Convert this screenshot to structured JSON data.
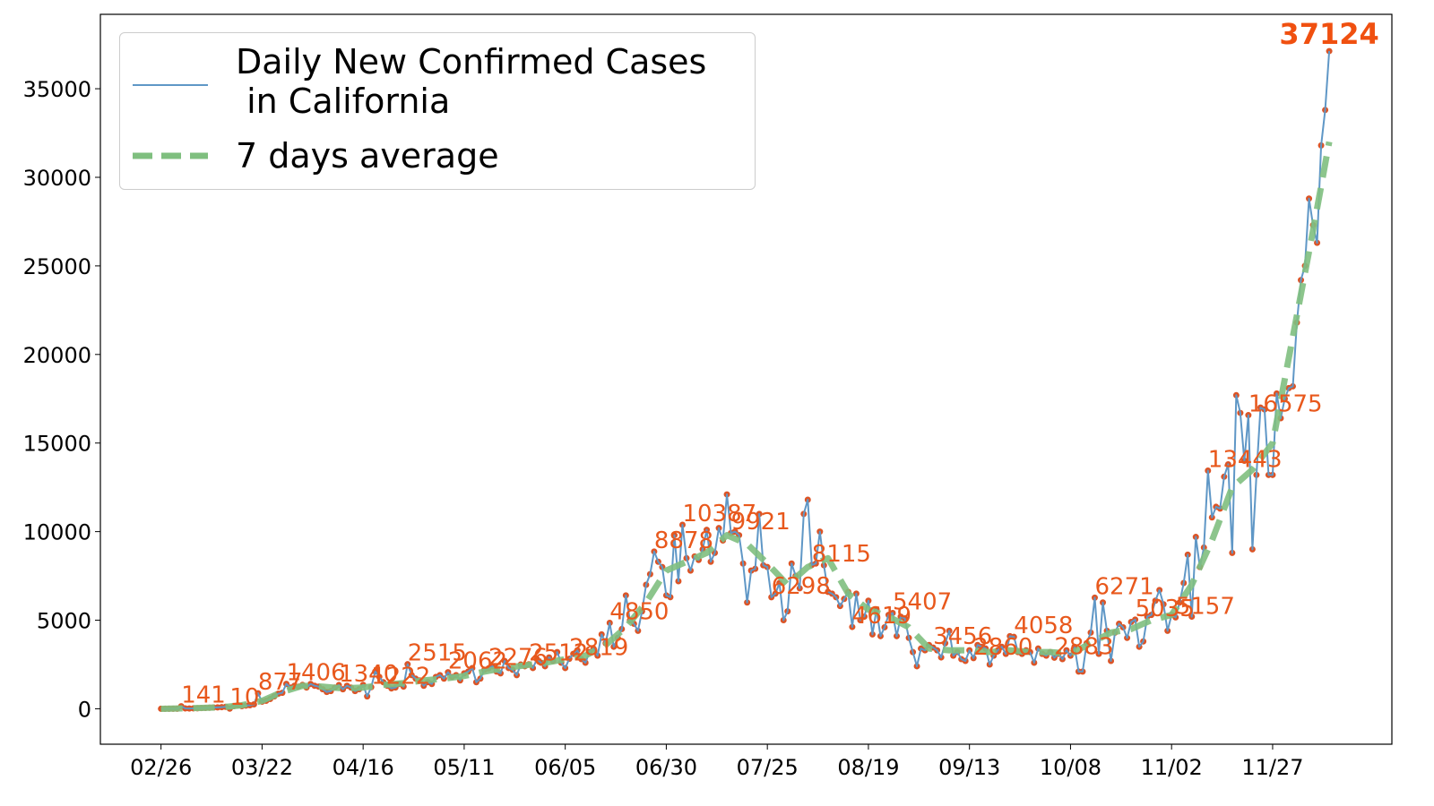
{
  "chart_data": {
    "type": "line",
    "xlim": [
      -15,
      304.5
    ],
    "ylim": [
      -2000,
      39200
    ],
    "xticks": [
      {
        "value": 0,
        "label": "02/26"
      },
      {
        "value": 25,
        "label": "03/22"
      },
      {
        "value": 50,
        "label": "04/16"
      },
      {
        "value": 75,
        "label": "05/11"
      },
      {
        "value": 100,
        "label": "06/05"
      },
      {
        "value": 125,
        "label": "06/30"
      },
      {
        "value": 150,
        "label": "07/25"
      },
      {
        "value": 175,
        "label": "08/19"
      },
      {
        "value": 200,
        "label": "09/13"
      },
      {
        "value": 225,
        "label": "10/08"
      },
      {
        "value": 250,
        "label": "11/02"
      },
      {
        "value": 275,
        "label": "11/27"
      }
    ],
    "yticks": [
      0,
      5000,
      10000,
      15000,
      20000,
      25000,
      30000,
      35000
    ],
    "legend": "upper left",
    "series": [
      {
        "name": "Daily New Confirmed Cases\n in California",
        "color": "#5f97c6",
        "marker_color": "#dc5426",
        "values": [
          0,
          0,
          2,
          3,
          5,
          141,
          20,
          15,
          25,
          30,
          40,
          50,
          60,
          70,
          80,
          90,
          110,
          10,
          150,
          200,
          150,
          180,
          200,
          250,
          877,
          400,
          450,
          550,
          700,
          850,
          900,
          1406,
          1200,
          1300,
          1250,
          1350,
          1200,
          1400,
          1300,
          1250,
          1100,
          950,
          1000,
          1200,
          1340,
          1100,
          1300,
          1200,
          1000,
          1100,
          1350,
          700,
          1222,
          2100,
          1800,
          1500,
          1300,
          1150,
          1200,
          1400,
          1250,
          2515,
          1900,
          1700,
          1600,
          1300,
          1500,
          1400,
          1800,
          1900,
          1700,
          2062,
          1800,
          1900,
          1600,
          2000,
          2100,
          2300,
          1500,
          1700,
          2200,
          2276,
          2400,
          2100,
          2000,
          2700,
          2300,
          2200,
          1900,
          2500,
          2400,
          2512,
          2300,
          2800,
          2600,
          2400,
          2900,
          2700,
          3200,
          2600,
          2300,
          2819,
          3100,
          3300,
          2800,
          2600,
          3200,
          3400,
          3000,
          4200,
          3700,
          4850,
          3500,
          4000,
          4500,
          6400,
          5000,
          4800,
          4400,
          5500,
          7000,
          7600,
          8878,
          8300,
          8000,
          6400,
          6300,
          9800,
          7200,
          10387,
          8500,
          7800,
          8600,
          8400,
          9000,
          10100,
          8300,
          8800,
          10200,
          9500,
          12100,
          9921,
          10000,
          9800,
          8200,
          6000,
          7800,
          7900,
          11000,
          8100,
          8000,
          6298,
          6500,
          7100,
          5000,
          5500,
          8200,
          7500,
          6800,
          11000,
          11800,
          8115,
          8200,
          10000,
          8100,
          6600,
          6500,
          6300,
          5800,
          6200,
          6600,
          4619,
          6500,
          5000,
          5200,
          6100,
          4200,
          5600,
          4100,
          4600,
          5300,
          5407,
          4100,
          5200,
          5100,
          4000,
          3200,
          2400,
          3400,
          3300,
          3600,
          3456,
          3300,
          2900,
          3700,
          4400,
          3000,
          3200,
          2800,
          2700,
          3300,
          2860,
          3600,
          3500,
          3400,
          2500,
          3000,
          3300,
          3500,
          3100,
          4100,
          4058,
          3200,
          3100,
          3300,
          3200,
          2600,
          3400,
          3100,
          3000,
          3200,
          2883,
          3100,
          2800,
          3300,
          3000,
          3500,
          2100,
          2100,
          3700,
          4300,
          6271,
          3100,
          6000,
          4400,
          2700,
          4300,
          4800,
          4600,
          4000,
          4900,
          5035,
          3500,
          3800,
          5200,
          5300,
          6100,
          6700,
          5900,
          4400,
          5300,
          5157,
          6000,
          7100,
          8700,
          5200,
          9700,
          8000,
          9100,
          13443,
          10800,
          11400,
          11300,
          13100,
          13800,
          8800,
          17700,
          16700,
          14000,
          16575,
          9000,
          13200,
          17000,
          16900,
          13200,
          13200,
          17800,
          16400,
          17500,
          18100,
          18200,
          21800,
          24200,
          25000,
          28800,
          27300,
          26300,
          31800,
          33800,
          37124
        ]
      },
      {
        "name": "7 days average",
        "color": "#7fbf7f",
        "dashed": true,
        "x": [
          0,
          5,
          10,
          15,
          20,
          25,
          30,
          35,
          40,
          45,
          50,
          55,
          60,
          65,
          70,
          75,
          80,
          85,
          90,
          95,
          100,
          105,
          110,
          115,
          120,
          125,
          130,
          135,
          140,
          145,
          150,
          155,
          160,
          165,
          170,
          175,
          180,
          185,
          190,
          195,
          200,
          205,
          210,
          215,
          220,
          225,
          230,
          235,
          240,
          245,
          250,
          255,
          260,
          265,
          270,
          275,
          280,
          285,
          289
        ],
        "values": [
          0,
          20,
          50,
          80,
          200,
          450,
          950,
          1300,
          1250,
          1150,
          1200,
          1350,
          1450,
          1600,
          1700,
          1850,
          2100,
          2300,
          2450,
          2600,
          2800,
          3000,
          3600,
          4600,
          6000,
          7800,
          8300,
          8800,
          9800,
          9300,
          8200,
          7000,
          8000,
          8500,
          6500,
          5600,
          5200,
          4600,
          3400,
          3300,
          3300,
          3200,
          3300,
          3200,
          3200,
          3100,
          3700,
          4300,
          4500,
          5000,
          5300,
          7000,
          9500,
          12500,
          13500,
          15000,
          21000,
          27000,
          32000
        ]
      }
    ],
    "annotations": [
      {
        "x": 5,
        "text": 141
      },
      {
        "x": 17,
        "text": 10
      },
      {
        "x": 24,
        "text": 877
      },
      {
        "x": 31,
        "text": 1406
      },
      {
        "x": 44,
        "text": 1340
      },
      {
        "x": 52,
        "text": 1222
      },
      {
        "x": 61,
        "text": 2515
      },
      {
        "x": 71,
        "text": 2062
      },
      {
        "x": 81,
        "text": 2276
      },
      {
        "x": 91,
        "text": 2512
      },
      {
        "x": 101,
        "text": 2819
      },
      {
        "x": 111,
        "text": 4850
      },
      {
        "x": 122,
        "text": 8878
      },
      {
        "x": 129,
        "text": 10387
      },
      {
        "x": 141,
        "text": 9921
      },
      {
        "x": 151,
        "text": 6298
      },
      {
        "x": 161,
        "text": 8115
      },
      {
        "x": 171,
        "text": 4619
      },
      {
        "x": 181,
        "text": 5407
      },
      {
        "x": 191,
        "text": 3456
      },
      {
        "x": 201,
        "text": 2860
      },
      {
        "x": 211,
        "text": 4058
      },
      {
        "x": 221,
        "text": 2883
      },
      {
        "x": 231,
        "text": 6271
      },
      {
        "x": 241,
        "text": 5035
      },
      {
        "x": 251,
        "text": 5157
      },
      {
        "x": 259,
        "text": 13443
      },
      {
        "x": 269,
        "text": 16575
      },
      {
        "x": 289,
        "text": 37124,
        "bold": true
      }
    ]
  }
}
